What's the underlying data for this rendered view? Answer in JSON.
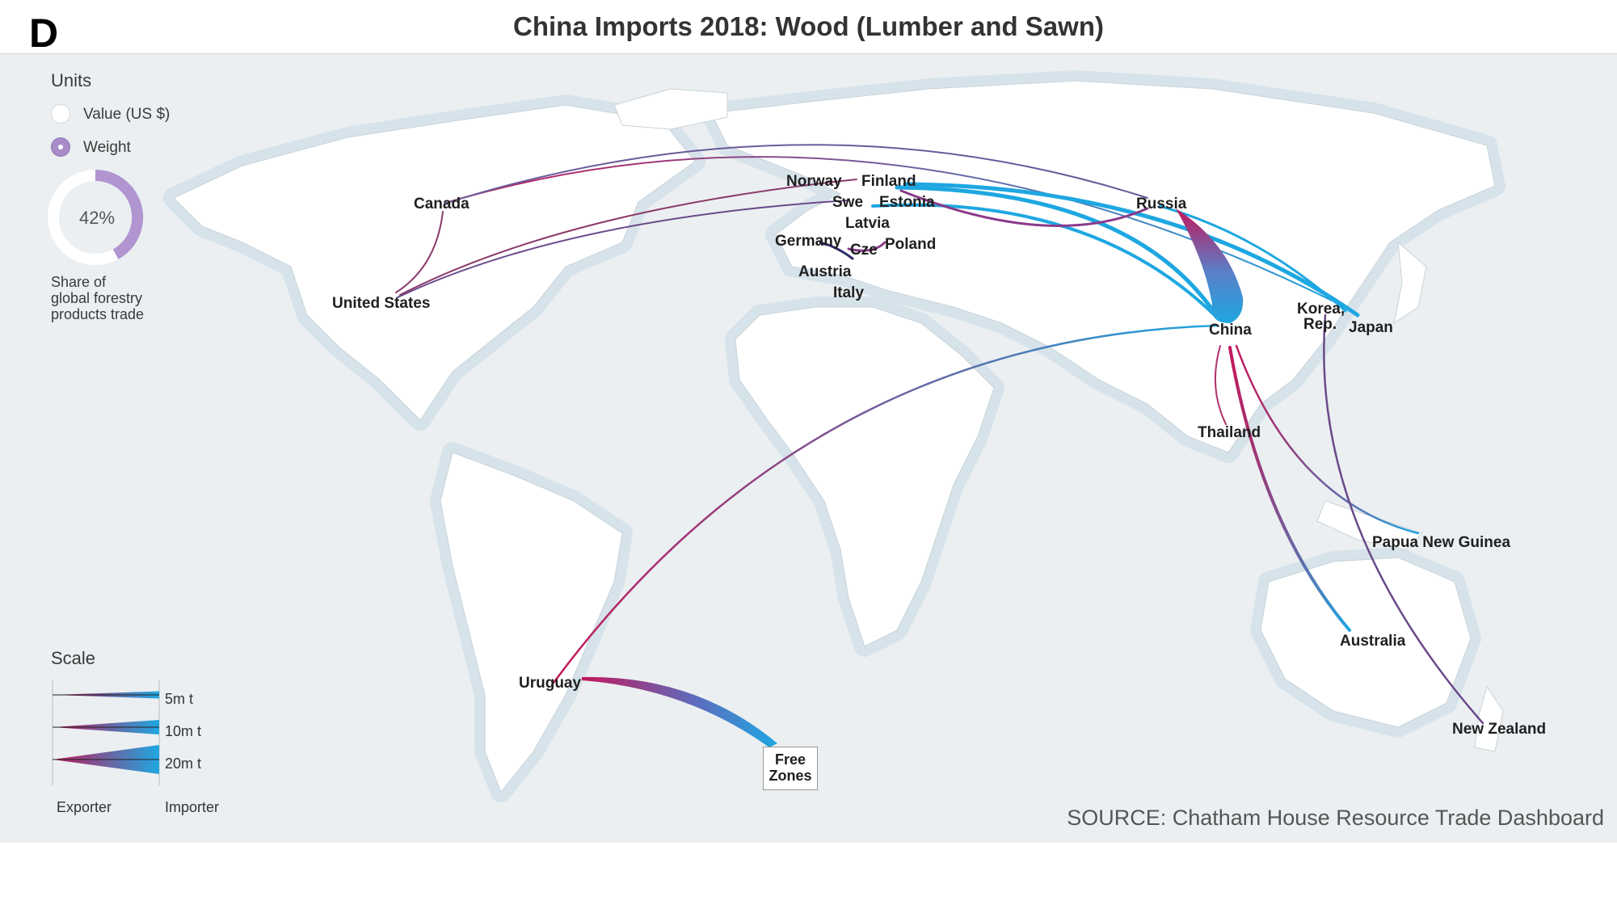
{
  "panel_letter": "D",
  "title": "China Imports 2018: Wood (Lumber and Sawn)",
  "source": "SOURCE: Chatham House Resource Trade Dashboard",
  "colors": {
    "ocean": "#ebeff1",
    "land": "#ffffff",
    "coast_halo": "#d5e1e8",
    "flow_exporter": "#c2185b",
    "flow_importer": "#1ea7e1",
    "gauge": "#a98bc8"
  },
  "units": {
    "title": "Units",
    "options": [
      {
        "label": "Value (US $)",
        "selected": false
      },
      {
        "label": "Weight",
        "selected": true
      }
    ]
  },
  "share": {
    "percent": 42,
    "percent_label": "42%",
    "label_lines": [
      "Share of",
      "global forestry",
      "products trade"
    ]
  },
  "scale": {
    "title": "Scale",
    "entries": [
      {
        "label": "5m t",
        "tonnes_m": 5
      },
      {
        "label": "10m t",
        "tonnes_m": 10
      },
      {
        "label": "20m t",
        "tonnes_m": 20
      }
    ],
    "exporter_label": "Exporter",
    "importer_label": "Importer"
  },
  "countries": {
    "canada": "Canada",
    "united_states": "United States",
    "norway": "Norway",
    "finland": "Finland",
    "swe": "Swe",
    "estonia": "Estonia",
    "latvia": "Latvia",
    "germany": "Germany",
    "cze": "Cze",
    "poland": "Poland",
    "austria": "Austria",
    "italy": "Italy",
    "russia": "Russia",
    "china": "China",
    "korea_line1": "Korea,",
    "korea_line2": "Rep.",
    "japan": "Japan",
    "thailand": "Thailand",
    "papua_new_guinea": "Papua New Guinea",
    "australia": "Australia",
    "new_zealand": "New Zealand",
    "uruguay": "Uruguay",
    "free_zones_line1": "Free",
    "free_zones_line2": "Zones"
  }
}
